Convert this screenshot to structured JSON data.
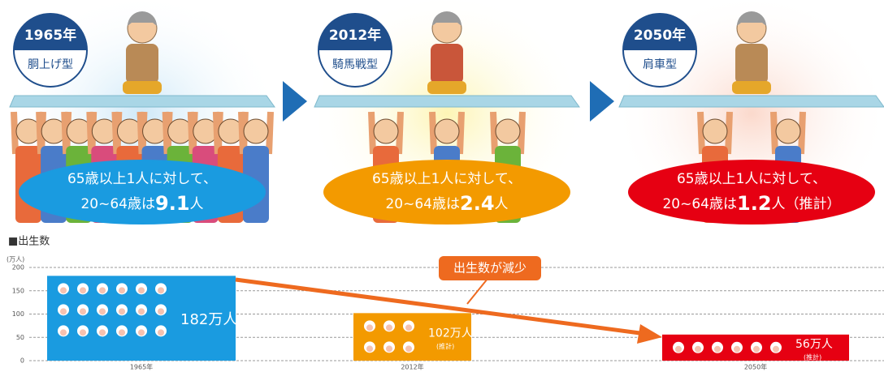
{
  "panels": [
    {
      "year": "1965年",
      "kind": "胴上げ型",
      "line1": "65歳以上1人に対して、",
      "line2": "20~64歳は",
      "ratio": "9.1",
      "unit": "人"
    },
    {
      "year": "2012年",
      "kind": "騎馬戦型",
      "line1": "65歳以上1人に対して、",
      "line2": "20~64歳は",
      "ratio": "2.4",
      "unit": "人"
    },
    {
      "year": "2050年",
      "kind": "肩車型",
      "line1": "65歳以上1人に対して、",
      "line2": "20~64歳は",
      "ratio": "1.2",
      "unit": "人（推計）"
    }
  ],
  "chart_data": {
    "type": "bar",
    "title": "■出生数",
    "y_label": "(万人)",
    "categories": [
      "1965年",
      "2012年",
      "2050年"
    ],
    "values": [
      182,
      102,
      56
    ],
    "value_labels": [
      "182万人",
      "102万人",
      "56万人"
    ],
    "notes": [
      null,
      "(推計)",
      "(推計)"
    ],
    "colors": [
      "#1a9be0",
      "#f39a00",
      "#e60012"
    ],
    "ylim": [
      0,
      200
    ],
    "yticks": [
      0,
      50,
      100,
      150,
      200
    ],
    "grid": true,
    "annotation": "出生数が減少"
  }
}
